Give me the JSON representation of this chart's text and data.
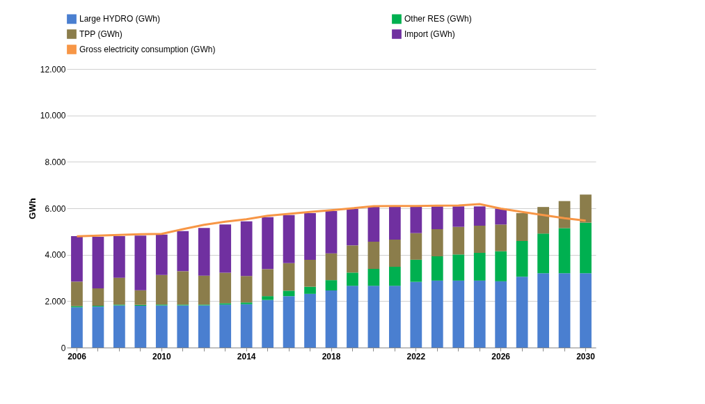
{
  "chart_data": {
    "type": "bar",
    "stacked": true,
    "ylabel": "GWh",
    "categories": [
      "2006",
      null,
      null,
      null,
      "2010",
      null,
      null,
      null,
      "2014",
      null,
      null,
      null,
      "2018",
      null,
      null,
      null,
      "2022",
      null,
      null,
      null,
      "2026",
      null,
      null,
      null,
      "2030"
    ],
    "ylim": [
      0,
      12000
    ],
    "yticks": [
      {
        "value": 0,
        "label": "0"
      },
      {
        "value": 2000,
        "label": "2.000"
      },
      {
        "value": 4000,
        "label": "4.000"
      },
      {
        "value": 6000,
        "label": "6.000"
      },
      {
        "value": 8000,
        "label": "8.000"
      },
      {
        "value": 10000,
        "label": "10.000"
      },
      {
        "value": 12000,
        "label": "12.000"
      }
    ],
    "grid": "y",
    "legend": "top",
    "series": [
      {
        "name": "Large HYDRO (GWh)",
        "color": "#4a7fd0",
        "values": [
          1735,
          1765,
          1815,
          1800,
          1815,
          1815,
          1815,
          1850,
          1870,
          2050,
          2215,
          2315,
          2460,
          2660,
          2660,
          2660,
          2830,
          2885,
          2885,
          2885,
          2855,
          3050,
          3200,
          3200,
          3200
        ]
      },
      {
        "name": "Other RES (GWh)",
        "color": "#00b050",
        "values": [
          50,
          35,
          35,
          40,
          35,
          35,
          35,
          60,
          70,
          165,
          235,
          305,
          445,
          570,
          730,
          820,
          955,
          1045,
          1125,
          1195,
          1295,
          1540,
          1710,
          1945,
          2180
        ]
      },
      {
        "name": "TPP (GWh)",
        "color": "#8b7d4b",
        "values": [
          1055,
          750,
          1160,
          630,
          1275,
          1440,
          1250,
          1315,
          1140,
          1165,
          1185,
          1160,
          1155,
          1170,
          1170,
          1170,
          1145,
          1170,
          1190,
          1170,
          1150,
          1200,
          1145,
          1165,
          1210
        ]
      },
      {
        "name": "Import  (GWh)",
        "color": "#7030a0",
        "values": [
          1960,
          2220,
          1790,
          2350,
          1745,
          1730,
          2050,
          2075,
          2360,
          2235,
          2075,
          2010,
          1820,
          1580,
          1500,
          1410,
          1150,
          980,
          880,
          830,
          685,
          null,
          null,
          null,
          null
        ]
      },
      {
        "name": "Gross electricity consumption (GWh)",
        "type": "line",
        "color": "#f79646",
        "marker": "none",
        "values": [
          4790,
          4820,
          4850,
          4880,
          4900,
          5100,
          5290,
          5420,
          5530,
          5680,
          5760,
          5840,
          5920,
          6000,
          6090,
          6100,
          6100,
          6110,
          6120,
          6180,
          5985,
          5840,
          5710,
          5575,
          5470
        ]
      }
    ]
  }
}
